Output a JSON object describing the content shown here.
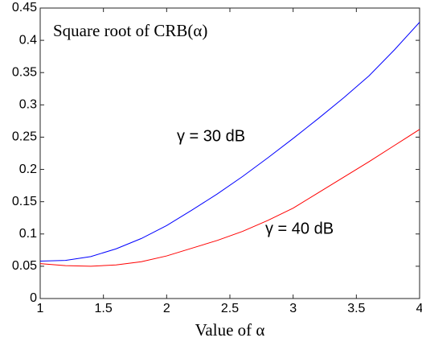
{
  "chart_data": {
    "type": "line",
    "title": "Square root of CRB(α)",
    "x_label": "Value of α",
    "x": [
      1,
      1.2,
      1.4,
      1.6,
      1.8,
      2.0,
      2.2,
      2.4,
      2.6,
      2.8,
      3.0,
      3.2,
      3.4,
      3.6,
      3.8,
      4.0
    ],
    "series": [
      {
        "name": "γ = 30 dB",
        "color": "#0000ff",
        "values": [
          0.058,
          0.059,
          0.065,
          0.077,
          0.093,
          0.113,
          0.137,
          0.162,
          0.189,
          0.218,
          0.248,
          0.279,
          0.311,
          0.345,
          0.385,
          0.428
        ]
      },
      {
        "name": "γ = 40 dB",
        "color": "#ff0000",
        "values": [
          0.054,
          0.051,
          0.05,
          0.052,
          0.057,
          0.066,
          0.078,
          0.09,
          0.104,
          0.121,
          0.14,
          0.164,
          0.188,
          0.212,
          0.237,
          0.262
        ]
      }
    ],
    "xlim": [
      1,
      4
    ],
    "xticks": [
      1,
      1.5,
      2,
      2.5,
      3,
      3.5,
      4
    ],
    "ylim": [
      0,
      0.45
    ],
    "yticks": [
      0,
      0.05,
      0.1,
      0.15,
      0.2,
      0.25,
      0.3,
      0.35,
      0.4,
      0.45
    ],
    "grid": false
  }
}
